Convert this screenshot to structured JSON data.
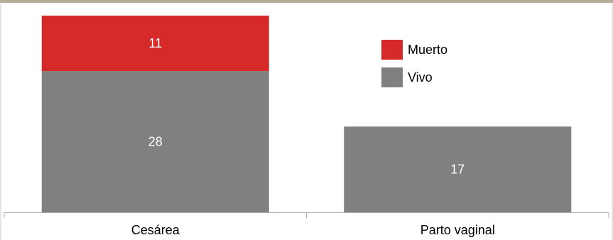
{
  "chart_data": {
    "type": "bar",
    "stacked": true,
    "categories": [
      "Cesárea",
      "Parto vaginal"
    ],
    "series": [
      {
        "name": "Vivo",
        "values": [
          28,
          17
        ],
        "color": "#808080"
      },
      {
        "name": "Muerto",
        "values": [
          11,
          null
        ],
        "color": "#d62a2a"
      }
    ],
    "legend": {
      "position": "top-right",
      "entries": [
        "Muerto",
        "Vivo"
      ]
    },
    "ylim": [
      0,
      39
    ],
    "grid": false,
    "title": "",
    "xlabel": "",
    "ylabel": ""
  },
  "colors": {
    "border_top": "#b5ae9c",
    "axis": "#b0b0b0",
    "frame": "#c8c8c8"
  }
}
